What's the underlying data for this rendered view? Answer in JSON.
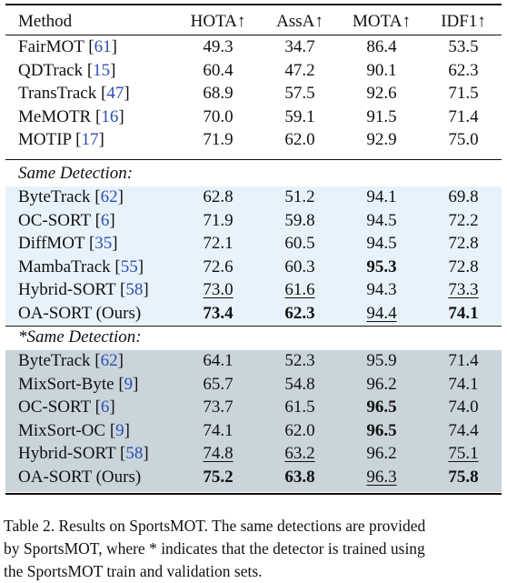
{
  "colors": {
    "band_same": "#e8f2fa",
    "band_star": "#c9d4db",
    "citation": "#2a4fb0"
  },
  "table": {
    "headers": [
      "Method",
      "HOTA↑",
      "AssA↑",
      "MOTA↑",
      "IDF1↑"
    ],
    "groups": [
      {
        "label": "",
        "band": "",
        "rows": [
          {
            "method": "FairMOT",
            "ref": "61",
            "values": [
              "49.3",
              "34.7",
              "86.4",
              "53.5"
            ],
            "bold": [],
            "underline": []
          },
          {
            "method": "QDTrack",
            "ref": "15",
            "values": [
              "60.4",
              "47.2",
              "90.1",
              "62.3"
            ],
            "bold": [],
            "underline": []
          },
          {
            "method": "TransTrack",
            "ref": "47",
            "values": [
              "68.9",
              "57.5",
              "92.6",
              "71.5"
            ],
            "bold": [],
            "underline": []
          },
          {
            "method": "MeMOTR",
            "ref": "16",
            "values": [
              "70.0",
              "59.1",
              "91.5",
              "71.4"
            ],
            "bold": [],
            "underline": []
          },
          {
            "method": "MOTIP",
            "ref": "17",
            "values": [
              "71.9",
              "62.0",
              "92.9",
              "75.0"
            ],
            "bold": [],
            "underline": []
          }
        ]
      },
      {
        "label": "Same Detection:",
        "band": "band_same",
        "rows": [
          {
            "method": "ByteTrack",
            "ref": "62",
            "values": [
              "62.8",
              "51.2",
              "94.1",
              "69.8"
            ],
            "bold": [],
            "underline": []
          },
          {
            "method": "OC-SORT",
            "ref": "6",
            "values": [
              "71.9",
              "59.8",
              "94.5",
              "72.2"
            ],
            "bold": [],
            "underline": []
          },
          {
            "method": "DiffMOT",
            "ref": "35",
            "values": [
              "72.1",
              "60.5",
              "94.5",
              "72.8"
            ],
            "bold": [],
            "underline": []
          },
          {
            "method": "MambaTrack",
            "ref": "55",
            "values": [
              "72.6",
              "60.3",
              "95.3",
              "72.8"
            ],
            "bold": [
              2
            ],
            "underline": []
          },
          {
            "method": "Hybrid-SORT",
            "ref": "58",
            "values": [
              "73.0",
              "61.6",
              "94.3",
              "73.3"
            ],
            "bold": [],
            "underline": [
              0,
              1,
              3
            ]
          },
          {
            "method": "OA-SORT (Ours)",
            "ref": "",
            "values": [
              "73.4",
              "62.3",
              "94.4",
              "74.1"
            ],
            "bold": [
              0,
              1,
              3
            ],
            "underline": [
              2
            ]
          }
        ]
      },
      {
        "label": "*Same Detection:",
        "band": "band_star",
        "rows": [
          {
            "method": "ByteTrack",
            "ref": "62",
            "values": [
              "64.1",
              "52.3",
              "95.9",
              "71.4"
            ],
            "bold": [],
            "underline": []
          },
          {
            "method": "MixSort-Byte",
            "ref": "9",
            "values": [
              "65.7",
              "54.8",
              "96.2",
              "74.1"
            ],
            "bold": [],
            "underline": []
          },
          {
            "method": "OC-SORT",
            "ref": "6",
            "values": [
              "73.7",
              "61.5",
              "96.5",
              "74.0"
            ],
            "bold": [
              2
            ],
            "underline": []
          },
          {
            "method": "MixSort-OC",
            "ref": "9",
            "values": [
              "74.1",
              "62.0",
              "96.5",
              "74.4"
            ],
            "bold": [
              2
            ],
            "underline": []
          },
          {
            "method": "Hybrid-SORT",
            "ref": "58",
            "values": [
              "74.8",
              "63.2",
              "96.2",
              "75.1"
            ],
            "bold": [],
            "underline": [
              0,
              1,
              3
            ]
          },
          {
            "method": "OA-SORT (Ours)",
            "ref": "",
            "values": [
              "75.2",
              "63.8",
              "96.3",
              "75.8"
            ],
            "bold": [
              0,
              1,
              3
            ],
            "underline": [
              2
            ]
          }
        ]
      }
    ]
  },
  "caption": [
    "Table 2. Results on SportsMOT. The same detections are provided",
    "by SportsMOT, where * indicates that the detector is trained using",
    "the SportsMOT train and validation sets."
  ]
}
